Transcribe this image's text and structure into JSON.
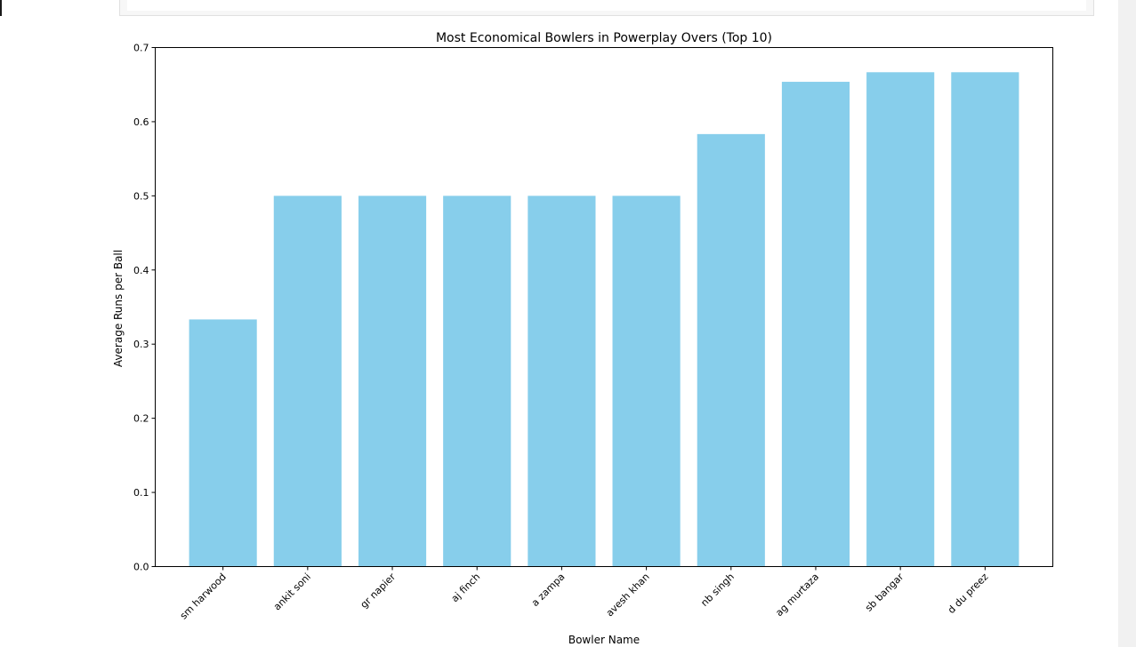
{
  "chart_data": {
    "type": "bar",
    "title": "Most Economical Bowlers in Powerplay Overs (Top 10)",
    "xlabel": "Bowler Name",
    "ylabel": "Average Runs per Ball",
    "categories": [
      "sm harwood",
      "ankit soni",
      "gr napier",
      "aj finch",
      "a zampa",
      "avesh khan",
      "nb singh",
      "ag murtaza",
      "sb bangar",
      "d du preez"
    ],
    "values": [
      0.3333,
      0.5,
      0.5,
      0.5,
      0.5,
      0.5,
      0.5833,
      0.6538,
      0.6667,
      0.6667
    ],
    "ylim": [
      0,
      0.7
    ],
    "yticks": [
      "0.0",
      "0.1",
      "0.2",
      "0.3",
      "0.4",
      "0.5",
      "0.6",
      "0.7"
    ],
    "bar_color": "#87ceeb",
    "grid": false,
    "legend": "none"
  }
}
